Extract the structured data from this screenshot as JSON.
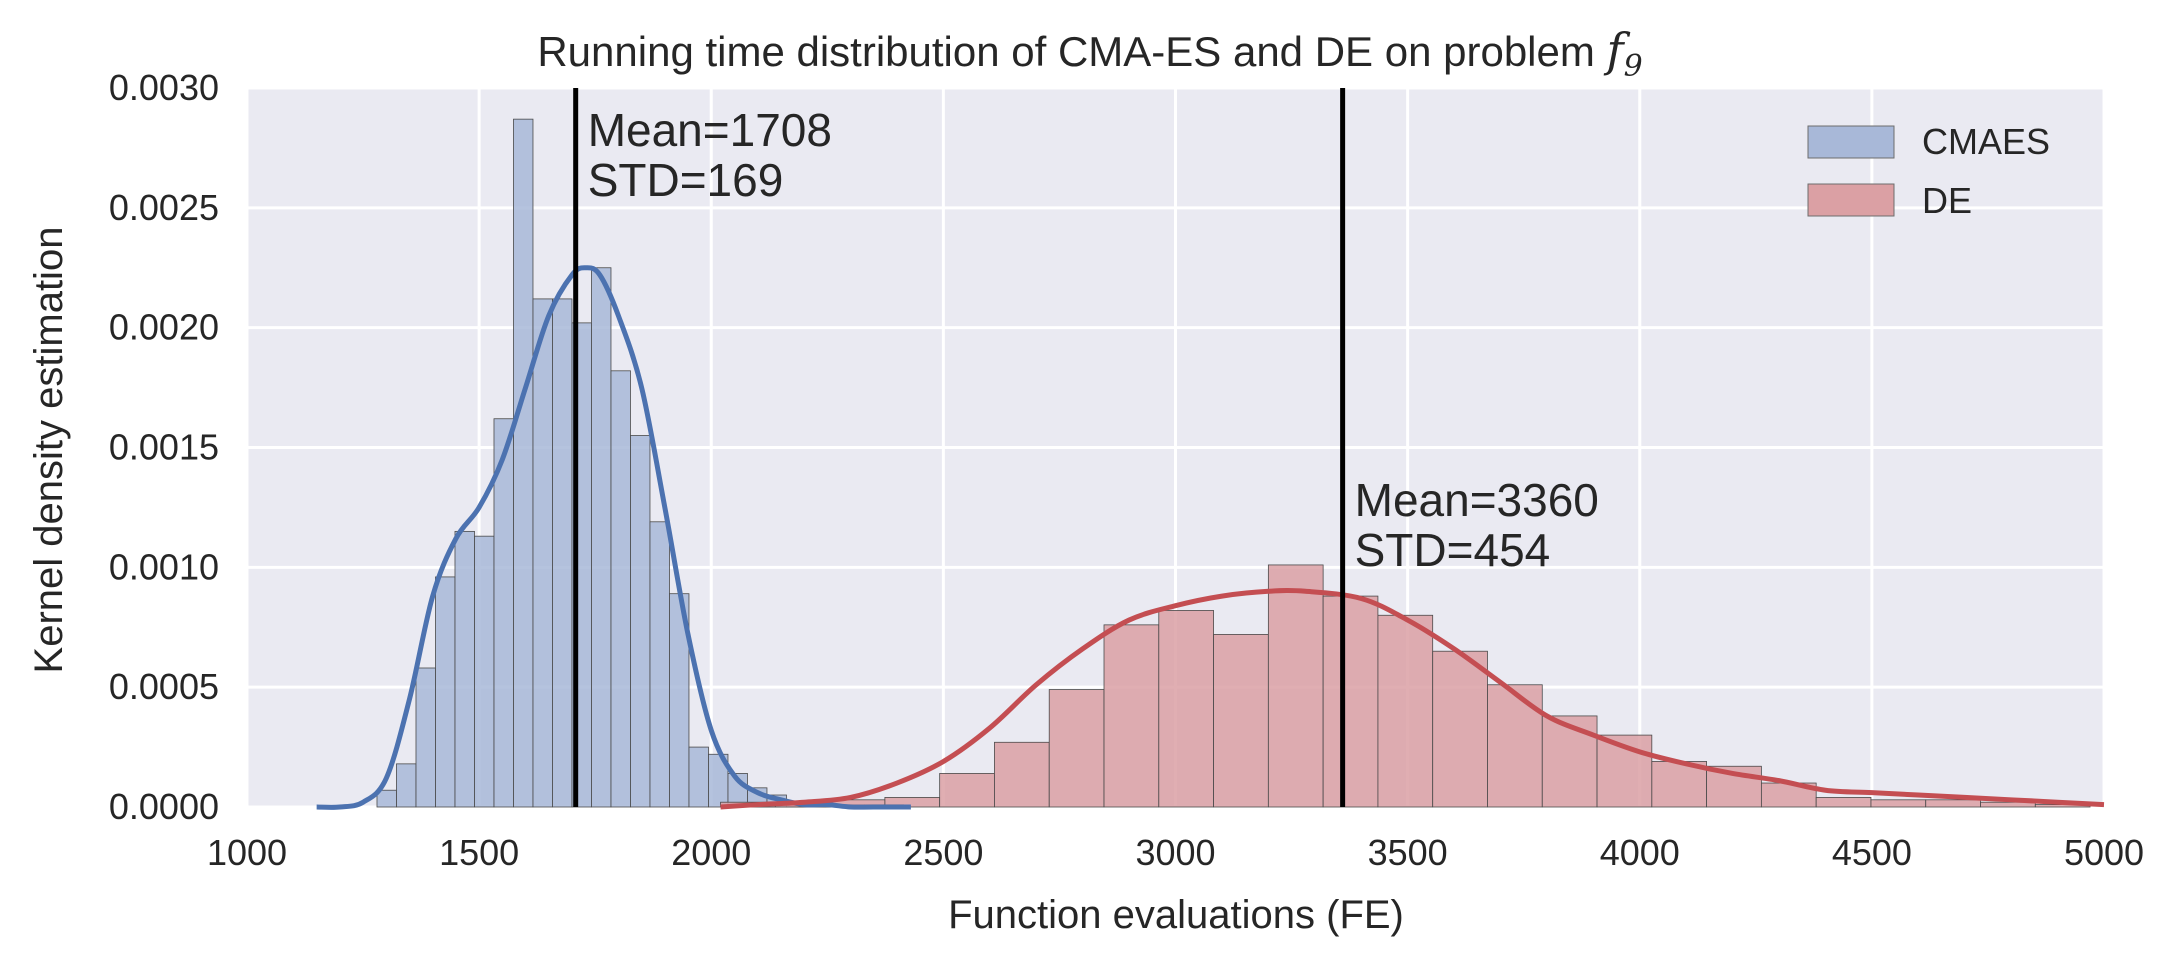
{
  "chart_data": {
    "type": "bar",
    "title": "Running time distribution of CMA-ES and DE on problem ",
    "title_math_main": "f",
    "title_math_sub": "9",
    "xlabel": "Function evaluations (FE)",
    "ylabel": "Kernel density estimation",
    "xlim": [
      1000,
      5000
    ],
    "ylim": [
      0,
      0.003
    ],
    "xticks": [
      1000,
      1500,
      2000,
      2500,
      3000,
      3500,
      4000,
      4500,
      5000
    ],
    "xtick_labels": [
      "1000",
      "1500",
      "2000",
      "2500",
      "3000",
      "3500",
      "4000",
      "4500",
      "5000"
    ],
    "yticks": [
      0,
      0.0005,
      0.001,
      0.0015,
      0.002,
      0.0025,
      0.003
    ],
    "ytick_labels": [
      "0.0000",
      "0.0005",
      "0.0010",
      "0.0015",
      "0.0020",
      "0.0025",
      "0.0030"
    ],
    "grid": true,
    "legend_position": "top-right",
    "series": [
      {
        "name": "CMAES",
        "color": "#4c72b0",
        "bar_color": "#a8b8d8",
        "bin_edges": [
          1280,
          1322,
          1364,
          1406,
          1448,
          1490,
          1532,
          1574,
          1616,
          1658,
          1700,
          1742,
          1784,
          1826,
          1868,
          1910,
          1952,
          1994,
          2036,
          2078,
          2120,
          2162,
          2204,
          2246,
          2288,
          2330,
          2372,
          2414
        ],
        "densities": [
          7e-05,
          0.00018,
          0.00058,
          0.00096,
          0.00115,
          0.00113,
          0.00162,
          0.00287,
          0.00212,
          0.00212,
          0.00202,
          0.00225,
          0.00182,
          0.00155,
          0.00119,
          0.00089,
          0.00025,
          0.00022,
          0.00014,
          8e-05,
          5e-05,
          2e-05,
          1e-05,
          1e-05,
          1e-05,
          1e-05,
          1e-05
        ],
        "kde_x": [
          1150,
          1200,
          1250,
          1300,
          1350,
          1400,
          1450,
          1500,
          1550,
          1600,
          1650,
          1700,
          1730,
          1760,
          1800,
          1850,
          1900,
          1950,
          2000,
          2050,
          2100,
          2150,
          2200,
          2250,
          2300,
          2350,
          2430
        ],
        "kde_y": [
          0.0,
          0.0,
          2e-05,
          0.00012,
          0.00045,
          0.00088,
          0.00112,
          0.00125,
          0.00145,
          0.00175,
          0.00205,
          0.00222,
          0.00225,
          0.00222,
          0.00205,
          0.00175,
          0.00125,
          0.00072,
          0.00032,
          0.00013,
          6e-05,
          3e-05,
          1e-05,
          1e-05,
          0.0,
          0.0,
          0.0
        ],
        "mean": 1708,
        "annotation": [
          "Mean=1708",
          "STD=169"
        ]
      },
      {
        "name": "DE",
        "color": "#c44e52",
        "bar_color": "#dba0a4",
        "bin_edges": [
          2020,
          2138,
          2256,
          2374,
          2492,
          2610,
          2728,
          2846,
          2964,
          3082,
          3200,
          3318,
          3436,
          3554,
          3672,
          3790,
          3908,
          4026,
          4144,
          4262,
          4380,
          4498,
          4616,
          4734,
          4852,
          4970
        ],
        "densities": [
          2e-05,
          2e-05,
          3e-05,
          4e-05,
          0.00014,
          0.00027,
          0.00049,
          0.00076,
          0.00082,
          0.00072,
          0.00101,
          0.00088,
          0.0008,
          0.00065,
          0.00051,
          0.00038,
          0.0003,
          0.00019,
          0.00017,
          0.0001,
          4e-05,
          3e-05,
          3e-05,
          2e-05,
          1e-05
        ],
        "kde_x": [
          2020,
          2100,
          2200,
          2300,
          2400,
          2500,
          2600,
          2700,
          2800,
          2900,
          3000,
          3100,
          3200,
          3280,
          3400,
          3500,
          3600,
          3700,
          3800,
          3900,
          4000,
          4100,
          4200,
          4300,
          4400,
          4500,
          4600,
          4700,
          4800,
          4900,
          5000
        ],
        "kde_y": [
          0.0,
          1e-05,
          2e-05,
          4e-05,
          0.0001,
          0.00019,
          0.00033,
          0.00051,
          0.00066,
          0.00078,
          0.00084,
          0.00088,
          0.0009,
          0.0009,
          0.00087,
          0.00078,
          0.00066,
          0.00052,
          0.00038,
          0.0003,
          0.00023,
          0.00018,
          0.00014,
          0.00011,
          7e-05,
          6e-05,
          5e-05,
          4e-05,
          3e-05,
          2e-05,
          1e-05
        ],
        "mean": 3360,
        "annotation": [
          "Mean=3360",
          "STD=454"
        ]
      }
    ]
  }
}
